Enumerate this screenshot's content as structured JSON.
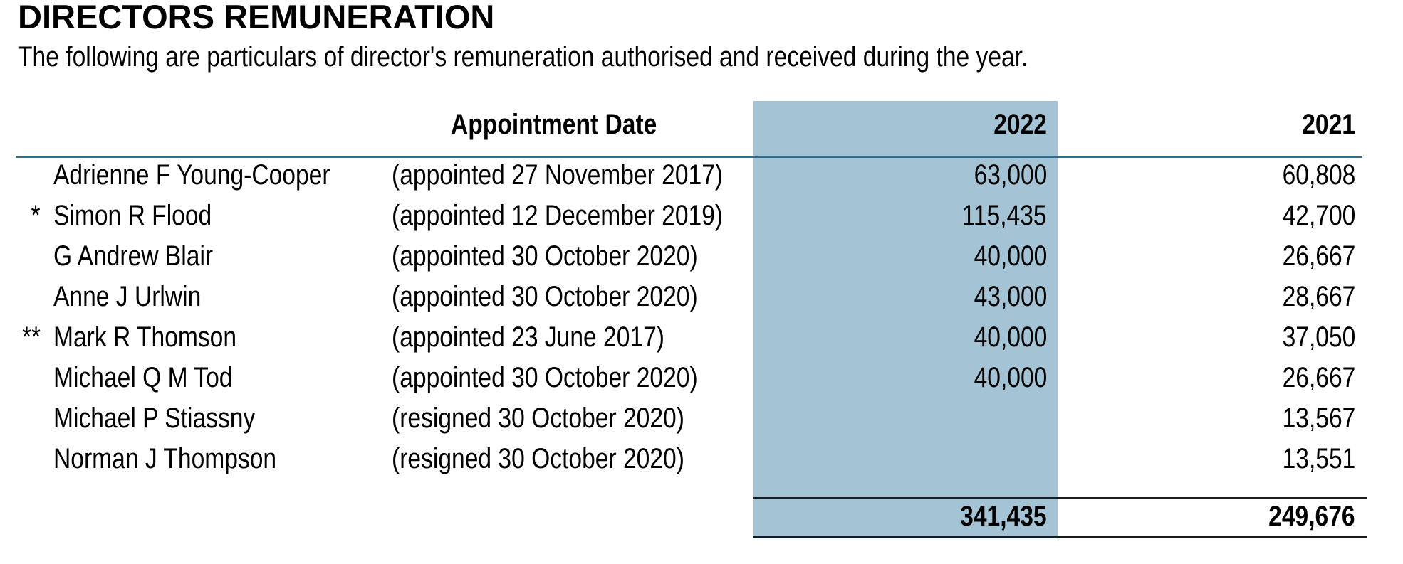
{
  "page": {
    "title": "DIRECTORS REMUNERATION",
    "subtitle": "The following are particulars of director's remuneration authorised and received during the year."
  },
  "table": {
    "columns": {
      "appointment": "Appointment Date",
      "y2022": "2022",
      "y2021": "2021"
    },
    "rows": [
      {
        "marker": "",
        "name": "Adrienne F Young-Cooper",
        "date": "(appointed 27 November 2017)",
        "y2022": "63,000",
        "y2021": "60,808"
      },
      {
        "marker": "*",
        "name": "Simon R Flood",
        "date": "(appointed 12 December 2019)",
        "y2022": "115,435",
        "y2021": "42,700"
      },
      {
        "marker": "",
        "name": "G Andrew Blair",
        "date": "(appointed 30 October 2020)",
        "y2022": "40,000",
        "y2021": "26,667"
      },
      {
        "marker": "",
        "name": "Anne J Urlwin",
        "date": "(appointed 30 October 2020)",
        "y2022": "43,000",
        "y2021": "28,667"
      },
      {
        "marker": "**",
        "name": "Mark R Thomson",
        "date": "(appointed 23 June 2017)",
        "y2022": "40,000",
        "y2021": "37,050"
      },
      {
        "marker": "",
        "name": "Michael Q M Tod",
        "date": "(appointed 30 October 2020)",
        "y2022": "40,000",
        "y2021": "26,667"
      },
      {
        "marker": "",
        "name": "Michael P Stiassny",
        "date": "(resigned 30 October 2020)",
        "y2022": "",
        "y2021": "13,567"
      },
      {
        "marker": "",
        "name": "Norman J Thompson",
        "date": "(resigned 30 October 2020)",
        "y2022": "",
        "y2021": "13,551"
      }
    ],
    "totals": {
      "y2022": "341,435",
      "y2021": "249,676"
    }
  },
  "colors": {
    "highlight": "#a4c4d6",
    "header_rule": "#2e6e8d",
    "text": "#000000",
    "total_rule": "#1a1a1a"
  }
}
